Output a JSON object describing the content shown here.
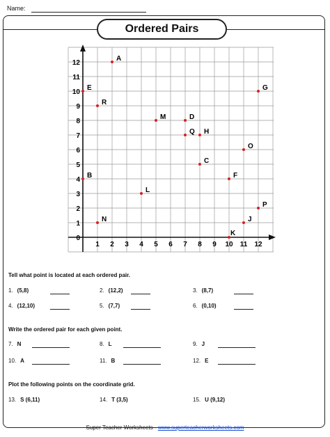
{
  "header": {
    "name_label": "Name:"
  },
  "title": "Ordered Pairs",
  "grid": {
    "x_ticks": [
      "1",
      "2",
      "3",
      "4",
      "5",
      "6",
      "7",
      "8",
      "9",
      "10",
      "11",
      "12"
    ],
    "y_ticks": [
      "1",
      "2",
      "3",
      "4",
      "5",
      "6",
      "7",
      "8",
      "9",
      "10",
      "11",
      "12"
    ],
    "origin_label": "0",
    "points": [
      {
        "label": "A",
        "x": 2,
        "y": 12
      },
      {
        "label": "B",
        "x": 0,
        "y": 4
      },
      {
        "label": "C",
        "x": 8,
        "y": 5
      },
      {
        "label": "D",
        "x": 7,
        "y": 8
      },
      {
        "label": "E",
        "x": 0,
        "y": 10
      },
      {
        "label": "F",
        "x": 10,
        "y": 4
      },
      {
        "label": "G",
        "x": 12,
        "y": 10
      },
      {
        "label": "H",
        "x": 8,
        "y": 7
      },
      {
        "label": "J",
        "x": 11,
        "y": 1
      },
      {
        "label": "K",
        "x": 10,
        "y": 0
      },
      {
        "label": "L",
        "x": 4,
        "y": 3
      },
      {
        "label": "M",
        "x": 5,
        "y": 8
      },
      {
        "label": "N",
        "x": 1,
        "y": 1
      },
      {
        "label": "O",
        "x": 11,
        "y": 6
      },
      {
        "label": "P",
        "x": 12,
        "y": 2
      },
      {
        "label": "Q",
        "x": 7,
        "y": 7
      },
      {
        "label": "R",
        "x": 1,
        "y": 9
      }
    ],
    "point_color": "#d62020"
  },
  "section1": {
    "title": "Tell what point is located at each ordered pair.",
    "items": [
      {
        "num": "1.",
        "prompt": "(5,8)"
      },
      {
        "num": "2.",
        "prompt": "(12,2)"
      },
      {
        "num": "3.",
        "prompt": "(8,7)"
      },
      {
        "num": "4.",
        "prompt": "(12,10)"
      },
      {
        "num": "5.",
        "prompt": "(7,7)"
      },
      {
        "num": "6.",
        "prompt": "(0,10)"
      }
    ]
  },
  "section2": {
    "title": "Write the ordered pair for each given point.",
    "items": [
      {
        "num": "7.",
        "prompt": "N"
      },
      {
        "num": "8.",
        "prompt": "L"
      },
      {
        "num": "9.",
        "prompt": "J"
      },
      {
        "num": "10.",
        "prompt": "A"
      },
      {
        "num": "11.",
        "prompt": "B"
      },
      {
        "num": "12.",
        "prompt": "E"
      }
    ]
  },
  "section3": {
    "title": "Plot the following points on the coordinate grid.",
    "items": [
      {
        "num": "13.",
        "prompt": "S  (6,11)"
      },
      {
        "num": "14.",
        "prompt": "T (3,5)"
      },
      {
        "num": "15.",
        "prompt": "U  (9,12)"
      }
    ]
  },
  "footer": {
    "text": "Super Teacher Worksheets - ",
    "link": "www.superteacherworksheets.com"
  }
}
